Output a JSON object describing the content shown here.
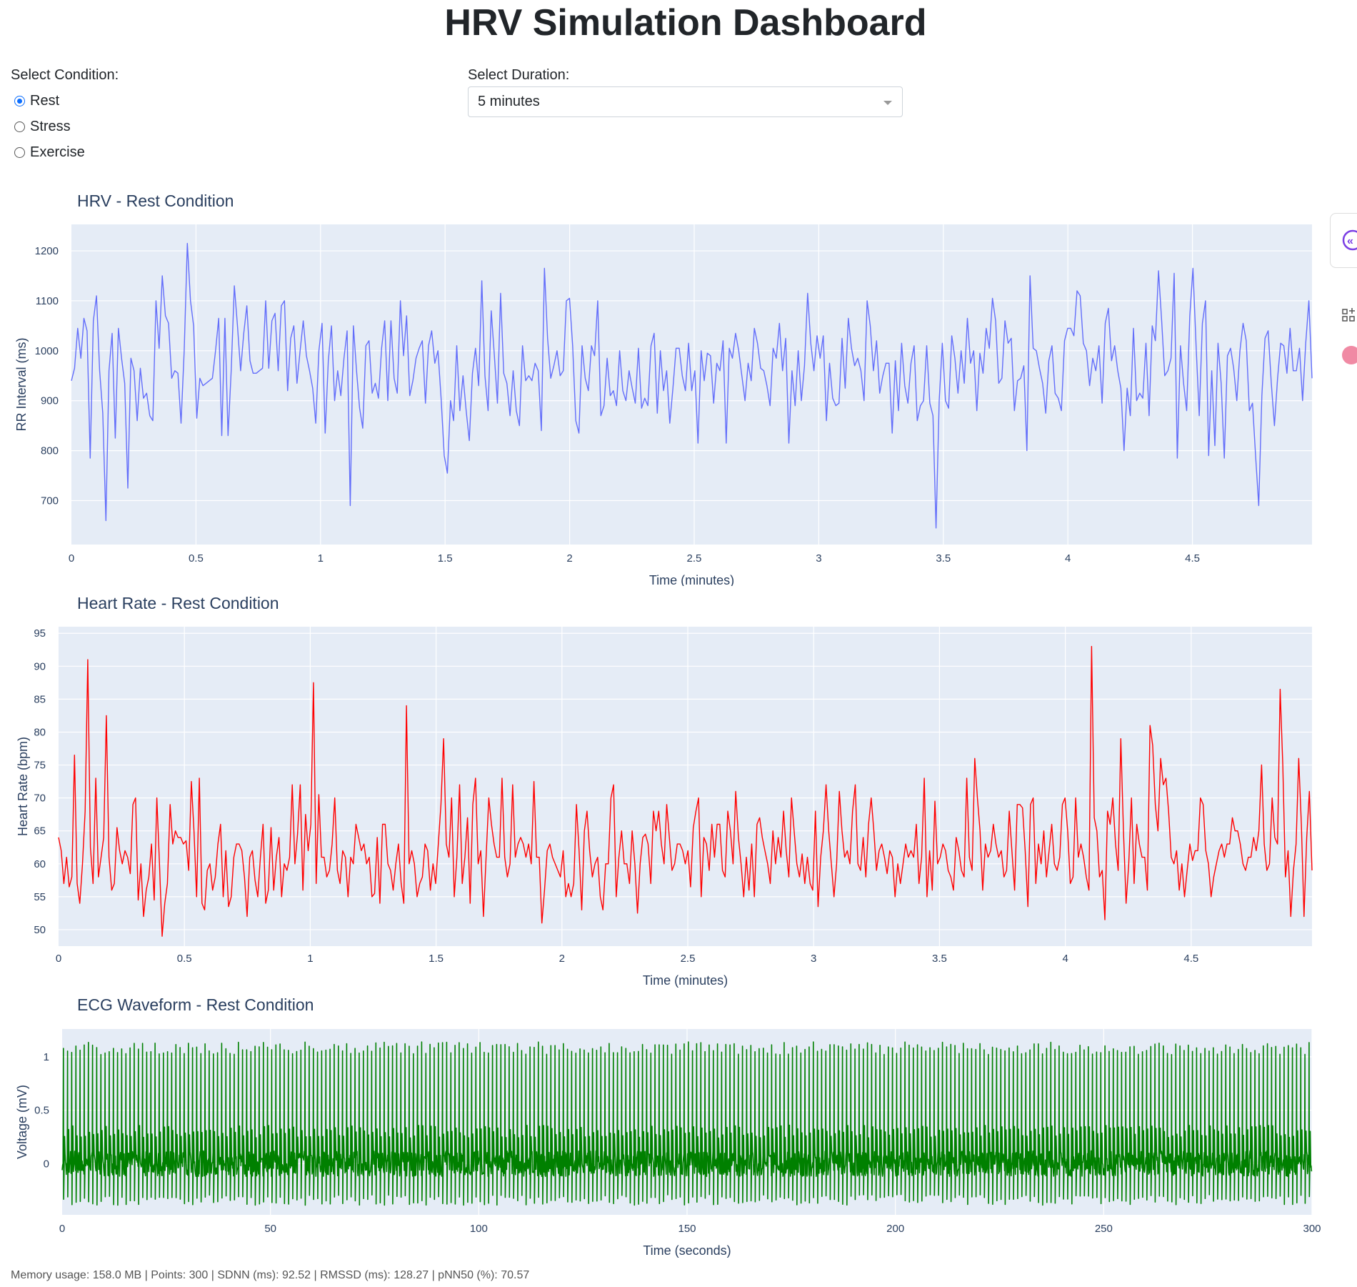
{
  "title": "HRV Simulation Dashboard",
  "condition": {
    "label": "Select Condition:",
    "options": [
      {
        "label": "Rest",
        "checked": true
      },
      {
        "label": "Stress",
        "checked": false
      },
      {
        "label": "Exercise",
        "checked": false
      }
    ]
  },
  "duration": {
    "label": "Select Duration:",
    "selected": "5 minutes"
  },
  "footer": {
    "text": "Memory usage: 158.0 MB | Points: 300 | SDNN (ms): 92.52 | RMSSD (ms): 128.27 | pNN50 (%): 70.57"
  },
  "colors": {
    "hrv": "#636efa",
    "hr": "#ff0000",
    "ecg": "#008000",
    "plot_bg": "#e5ecf6",
    "text": "#2a3f5f"
  },
  "chart_data": [
    {
      "type": "line",
      "title": "HRV - Rest Condition",
      "xlabel": "Time (minutes)",
      "ylabel": "RR Interval (ms)",
      "xlim": [
        0,
        4.98
      ],
      "ylim": [
        612,
        1253
      ],
      "xticks": [
        0,
        0.5,
        1,
        1.5,
        2,
        2.5,
        3,
        3.5,
        4,
        4.5
      ],
      "yticks": [
        700,
        800,
        900,
        1000,
        1100,
        1200
      ],
      "grid": true,
      "series": [
        {
          "x_start": 0,
          "x_step": 0.0166,
          "values": [
            940,
            965,
            1045,
            985,
            1065,
            1040,
            785,
            1060,
            1110,
            960,
            875,
            660,
            960,
            1035,
            825,
            1045,
            985,
            935,
            725,
            985,
            960,
            860,
            965,
            905,
            915,
            870,
            860,
            1100,
            1005,
            1150,
            1070,
            1055,
            945,
            960,
            955,
            855,
            1000,
            1215,
            1100,
            1050,
            865,
            945,
            930,
            935,
            940,
            945,
            1000,
            1065,
            830,
            1065,
            830,
            960,
            1130,
            1050,
            960,
            1035,
            1090,
            980,
            955,
            955,
            960,
            965,
            1100,
            965,
            1060,
            1075,
            960,
            1090,
            1100,
            920,
            1025,
            1050,
            935,
            1000,
            1060,
            990,
            960,
            925,
            855,
            1000,
            1055,
            835,
            980,
            1050,
            900,
            960,
            910,
            985,
            1040,
            690,
            1050,
            960,
            885,
            845,
            1010,
            1020,
            915,
            935,
            905,
            1005,
            1060,
            900,
            1060,
            945,
            915,
            1100,
            990,
            1070,
            910,
            940,
            985,
            1005,
            1020,
            895,
            1010,
            1040,
            975,
            1000,
            905,
            790,
            755,
            900,
            860,
            1010,
            880,
            950,
            880,
            820,
            955,
            1005,
            930,
            1140,
            950,
            880,
            1080,
            990,
            895,
            1115,
            955,
            935,
            870,
            960,
            880,
            850,
            1010,
            940,
            950,
            940,
            975,
            960,
            840,
            1165,
            1025,
            945,
            970,
            1000,
            950,
            960,
            1100,
            1105,
            1010,
            860,
            835,
            1010,
            945,
            920,
            1010,
            990,
            1100,
            870,
            890,
            985,
            910,
            920,
            890,
            1000,
            920,
            900,
            960,
            925,
            895,
            1005,
            885,
            905,
            890,
            1010,
            1035,
            875,
            1000,
            920,
            960,
            855,
            925,
            1005,
            1005,
            950,
            920,
            1015,
            920,
            960,
            815,
            1000,
            940,
            995,
            990,
            895,
            975,
            960,
            1020,
            815,
            1005,
            985,
            1035,
            1000,
            950,
            900,
            975,
            940,
            1045,
            1015,
            965,
            960,
            930,
            890,
            1005,
            985,
            1055,
            960,
            1025,
            815,
            960,
            890,
            1000,
            900,
            970,
            1115,
            1015,
            960,
            1030,
            985,
            1030,
            860,
            975,
            905,
            890,
            895,
            1025,
            925,
            1065,
            1005,
            970,
            985,
            960,
            900,
            1100,
            1050,
            960,
            1020,
            915,
            950,
            975,
            975,
            835,
            980,
            880,
            1015,
            930,
            895,
            975,
            1010,
            860,
            890,
            900,
            1010,
            895,
            870,
            645,
            900,
            1015,
            900,
            885,
            1030,
            985,
            915,
            1000,
            935,
            1065,
            975,
            1000,
            880,
            995,
            955,
            1045,
            1005,
            1105,
            1060,
            935,
            945,
            1060,
            1015,
            1025,
            880,
            940,
            945,
            970,
            800,
            1150,
            1005,
            1000,
            965,
            935,
            875,
            980,
            1010,
            915,
            905,
            880,
            1020,
            1045,
            1045,
            1030,
            1120,
            1110,
            1015,
            1000,
            930,
            985,
            960,
            1010,
            895,
            1055,
            1085,
            980,
            1010,
            960,
            925,
            800,
            925,
            870,
            1045,
            900,
            915,
            905,
            1015,
            870,
            1050,
            1020,
            1160,
            1060,
            950,
            960,
            985,
            1155,
            785,
            1010,
            935,
            880,
            1070,
            1165,
            1010,
            870,
            1055,
            1100,
            790,
            960,
            810,
            1015,
            935,
            785,
            990,
            1005,
            965,
            900,
            1000,
            1055,
            1020,
            880,
            895,
            790,
            690,
            910,
            1025,
            1040,
            935,
            850,
            945,
            1015,
            1010,
            955,
            1045,
            960,
            960,
            1005,
            900,
            1015,
            1100,
            945
          ]
        }
      ]
    },
    {
      "type": "line",
      "title": "Heart Rate - Rest Condition",
      "xlabel": "Time (minutes)",
      "ylabel": "Heart Rate (bpm)",
      "xlim": [
        0,
        4.98
      ],
      "ylim": [
        47.5,
        96
      ],
      "xticks": [
        0,
        0.5,
        1,
        1.5,
        2,
        2.5,
        3,
        3.5,
        4,
        4.5
      ],
      "yticks": [
        50,
        55,
        60,
        65,
        70,
        75,
        80,
        85,
        90,
        95
      ],
      "grid": true,
      "series": [
        {
          "x_start": 0,
          "x_step": 0.0166,
          "values": [
            64,
            62,
            57,
            61,
            56.5,
            58,
            76.5,
            57,
            54,
            60,
            68,
            91,
            62.5,
            57,
            73,
            58,
            61,
            64,
            82.5,
            61,
            56,
            57,
            65.5,
            62,
            60,
            62,
            61,
            58.5,
            69,
            70,
            54.5,
            60,
            52,
            56,
            58,
            63,
            54.5,
            70,
            60,
            49,
            54,
            57,
            69,
            63,
            65,
            64,
            64,
            63,
            63.5,
            59,
            72.5,
            65,
            55,
            73,
            54,
            53,
            59,
            60,
            56,
            58,
            63,
            66,
            55,
            62,
            53.5,
            55,
            61,
            63,
            63,
            62,
            58,
            52,
            61,
            62,
            57.5,
            55,
            61,
            66,
            54,
            56,
            65.5,
            56,
            61,
            64,
            55,
            60,
            59,
            61,
            72,
            60,
            64.5,
            72,
            56,
            67.5,
            62,
            66,
            87.5,
            57,
            70.5,
            61,
            61,
            58,
            59,
            63,
            70,
            59,
            57,
            62,
            61,
            55,
            61,
            60,
            66,
            64,
            62,
            63,
            60,
            61,
            55,
            55.5,
            64,
            54,
            66,
            66,
            60,
            59,
            56,
            60,
            63,
            57,
            54,
            84,
            60,
            62,
            60,
            55,
            57,
            58,
            63,
            62,
            56,
            60,
            57,
            63,
            69,
            79,
            63,
            61,
            70,
            55,
            61,
            72,
            57,
            61,
            67,
            54,
            69,
            73,
            60,
            62,
            52,
            61,
            70,
            66,
            63,
            61,
            61,
            73,
            61,
            58,
            60,
            72,
            61,
            63,
            64,
            63,
            61,
            63,
            60,
            72.5,
            61,
            61,
            51,
            56,
            62,
            63,
            61,
            60,
            59,
            58,
            62,
            55,
            57,
            55,
            57,
            69,
            62,
            53,
            65,
            68,
            62,
            58,
            60,
            61,
            55,
            53,
            60,
            60,
            70,
            72,
            55,
            61,
            65,
            60,
            60,
            57,
            65,
            60,
            52.5,
            60,
            64,
            64.5,
            63,
            57,
            68,
            65,
            68,
            63,
            60,
            69,
            64,
            59,
            60,
            63,
            63,
            62,
            60,
            62,
            56.5,
            65.5,
            68,
            70,
            55,
            64,
            63,
            59,
            66,
            61,
            66,
            66,
            59,
            58,
            68,
            65,
            60,
            71,
            64,
            60,
            55,
            61,
            56,
            63,
            55,
            66,
            67,
            64,
            62,
            60,
            57,
            65,
            60,
            64,
            61,
            68,
            62,
            58,
            70,
            65,
            60,
            58,
            61.5,
            57,
            61,
            57,
            56,
            68,
            53.5,
            61,
            65,
            72,
            65,
            60,
            55,
            60,
            71,
            65,
            61,
            62,
            60,
            68,
            72,
            60,
            59,
            64,
            58,
            66,
            70,
            65,
            59,
            62,
            63,
            61,
            58.5,
            62,
            61,
            55,
            60,
            57,
            60,
            63,
            61,
            62,
            61,
            66,
            57,
            61,
            73,
            55,
            62,
            56,
            69.5,
            60,
            61,
            63,
            62,
            59,
            58,
            56,
            64,
            62,
            59,
            58,
            73,
            61,
            59,
            76,
            70,
            65,
            56,
            63,
            61,
            62,
            66,
            63,
            61,
            62,
            58,
            59,
            68,
            62,
            56,
            69,
            69,
            68.5,
            62,
            53.5,
            69,
            70,
            57,
            63,
            60,
            65,
            58,
            62,
            66,
            60,
            59,
            61,
            69,
            70,
            65,
            57,
            58,
            70,
            61,
            63,
            61,
            58,
            56,
            93,
            67,
            65,
            58,
            59,
            51.5,
            68,
            66,
            70,
            63,
            59,
            79,
            65,
            54,
            60,
            70,
            57,
            66,
            63,
            61,
            61,
            56,
            81,
            78,
            69,
            65,
            76,
            72,
            73,
            68,
            61,
            60,
            62,
            56,
            60,
            55,
            59,
            63,
            60.5,
            62,
            62,
            70,
            69,
            62,
            60,
            55,
            58,
            60,
            62,
            63,
            61,
            63,
            63,
            67,
            65,
            65,
            63,
            60,
            59,
            61,
            61,
            64,
            62,
            65,
            75,
            63,
            59,
            60,
            70,
            64,
            63,
            86.5,
            75,
            58,
            62,
            52,
            59,
            63,
            76,
            66,
            52,
            64,
            71,
            59
          ]
        }
      ]
    },
    {
      "type": "line",
      "title": "ECG Waveform - Rest Condition",
      "xlabel": "Time (seconds)",
      "ylabel": "Voltage (mV)",
      "xlim": [
        0,
        300
      ],
      "ylim": [
        -0.48,
        1.26
      ],
      "xticks": [
        0,
        50,
        100,
        150,
        200,
        250,
        300
      ],
      "yticks": [
        0,
        0.5,
        1
      ],
      "grid": true,
      "series": [
        {
          "beats": 300,
          "r_peak_mean": 1.08,
          "s_trough_mean": -0.34,
          "t_wave_mean": 0.3,
          "noise_amplitude": 0.12
        }
      ]
    }
  ]
}
